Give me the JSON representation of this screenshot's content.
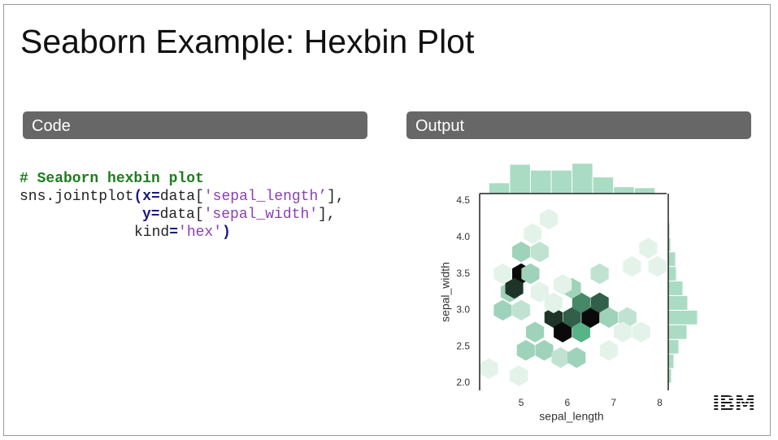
{
  "title": "Seaborn Example: Hexbin Plot",
  "panels": {
    "code": "Code",
    "output": "Output"
  },
  "code": {
    "comment": "# Seaborn hexbin plot",
    "lines": [
      [
        {
          "text": "sns.jointplot",
          "style": "plain"
        },
        {
          "text": "(x=",
          "style": "kw"
        },
        {
          "text": "data[",
          "style": "plain"
        },
        {
          "text": "'sepal_length’",
          "style": "str"
        },
        {
          "text": "],",
          "style": "plain"
        }
      ],
      [
        {
          "text": "y=",
          "style": "kw"
        },
        {
          "text": "data[",
          "style": "plain"
        },
        {
          "text": "'sepal_width'",
          "style": "str"
        },
        {
          "text": "],",
          "style": "plain"
        }
      ],
      [
        {
          "text": "kind",
          "style": "plain"
        },
        {
          "text": "=",
          "style": "kw"
        },
        {
          "text": "'hex'",
          "style": "str"
        },
        {
          "text": ")",
          "style": "kw"
        }
      ]
    ]
  },
  "logo": "IBM",
  "chart_data": {
    "type": "hexbin",
    "x_label": "sepal_length",
    "y_label": "sepal_width",
    "xlim": [
      4.1,
      8.15
    ],
    "ylim": [
      1.9,
      4.6
    ],
    "xticks": [
      5,
      6,
      7,
      8
    ],
    "yticks": [
      {
        "value": 2,
        "label": "2.0"
      },
      2.5,
      {
        "value": 3,
        "label": "3.0"
      },
      3.5,
      {
        "value": 4,
        "label": "4.0"
      },
      4.5
    ],
    "colors": [
      "#e3f3ea",
      "#58b387",
      "#0a0a0a"
    ],
    "hist_color": "#a9dcc3",
    "hexes": {
      "x": [
        4.95,
        4.3,
        5.1,
        5.5,
        5.85,
        6.2,
        6.9,
        5.3,
        5.7,
        5.9,
        6.1,
        6.3,
        6.5,
        6.7,
        6.3,
        6.1,
        5.7,
        6.9,
        7.3,
        7.6,
        7.2,
        4.6,
        5.0,
        4.75,
        5.0,
        4.85,
        4.6,
        5.2,
        5.0,
        5.4,
        5.25,
        5.6,
        7.4,
        7.75,
        7.95,
        6.7,
        5.9,
        5.4
      ],
      "y": [
        2.1,
        2.2,
        2.45,
        2.45,
        2.35,
        2.35,
        2.45,
        2.7,
        2.9,
        2.7,
        2.9,
        2.7,
        2.9,
        3.1,
        3.1,
        3.3,
        3.1,
        2.9,
        2.9,
        2.7,
        2.7,
        3.0,
        3.0,
        3.25,
        3.5,
        3.3,
        3.5,
        3.5,
        3.8,
        3.8,
        4.05,
        4.25,
        3.6,
        3.85,
        3.6,
        3.5,
        3.35,
        3.25
      ],
      "counts": [
        1,
        1,
        3,
        3,
        2,
        3,
        1,
        3,
        8,
        9,
        7,
        5,
        9,
        7,
        6,
        3,
        1,
        3,
        2,
        1,
        1,
        3,
        2,
        3,
        9,
        8,
        1,
        3,
        3,
        2,
        1,
        1,
        1,
        1,
        1,
        2,
        1,
        1
      ]
    },
    "x_hist": {
      "bins": [
        4.3,
        4.75,
        5.2,
        5.65,
        6.1,
        6.55,
        7.0,
        7.45,
        7.9
      ],
      "counts": [
        11,
        30,
        24,
        24,
        31,
        17,
        7,
        6
      ]
    },
    "y_hist": {
      "bins": [
        2.0,
        2.2,
        2.4,
        2.6,
        2.8,
        3.0,
        3.2,
        3.4,
        3.6,
        3.8,
        4.0,
        4.2,
        4.4
      ],
      "counts": [
        4,
        7,
        13,
        23,
        36,
        24,
        18,
        10,
        9,
        3,
        2,
        1
      ]
    }
  }
}
